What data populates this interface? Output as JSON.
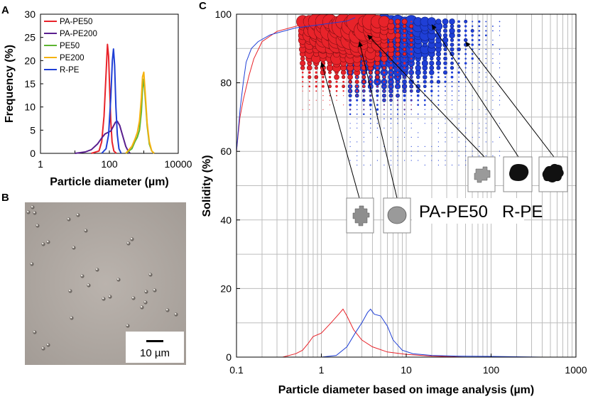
{
  "panels": {
    "a": {
      "label": "A",
      "chart_data": {
        "type": "line",
        "title": "",
        "xlabel": "Particle diameter (µm)",
        "ylabel": "Frequency (%)",
        "xscale": "log",
        "xlim": [
          1,
          10000
        ],
        "ylim": [
          0,
          30
        ],
        "x_ticks": [
          "1",
          "100",
          "10000"
        ],
        "y_ticks": [
          "0",
          "5",
          "10",
          "15",
          "20",
          "25",
          "30"
        ],
        "legend_position": "top-left",
        "series": [
          {
            "name": "PA-PE50",
            "color": "#e8232a",
            "x": [
              30,
              50,
              60,
              70,
              80,
              88,
              95,
              102,
              110,
              120,
              135,
              160
            ],
            "y": [
              0,
              0.5,
              2.5,
              8,
              17,
              23.5,
              21,
              14,
              7,
              2.5,
              0.5,
              0
            ]
          },
          {
            "name": "PA-PE200",
            "color": "#5a1f8f",
            "x": [
              10,
              20,
              30,
              45,
              60,
              75,
              90,
              110,
              130,
              150,
              170,
              200,
              250,
              300,
              350,
              400
            ],
            "y": [
              0,
              0.3,
              0.8,
              2,
              3.3,
              4.2,
              4.5,
              4.8,
              5.8,
              6.7,
              6.9,
              6,
              3.5,
              1.5,
              0.5,
              0
            ]
          },
          {
            "name": "PE50",
            "color": "#5cb531",
            "x": [
              300,
              450,
              550,
              650,
              750,
              850,
              920,
              1000,
              1100,
              1250,
              1450,
              1700,
              2000
            ],
            "y": [
              0,
              1,
              2.5,
              3.5,
              5,
              9,
              14,
              16,
              12,
              6,
              2,
              0.5,
              0
            ]
          },
          {
            "name": "PE200",
            "color": "#f5b20f",
            "x": [
              300,
              450,
              550,
              650,
              750,
              850,
              920,
              1000,
              1100,
              1250,
              1450,
              1700,
              2000
            ],
            "y": [
              0,
              1.5,
              3,
              4.5,
              7,
              12,
              16.5,
              17.5,
              13,
              6.5,
              2.5,
              0.5,
              0
            ]
          },
          {
            "name": "R-PE",
            "color": "#1f3fd6",
            "x": [
              60,
              80,
              95,
              110,
              122,
              132,
              142,
              155,
              170,
              190,
              220
            ],
            "y": [
              0,
              1,
              4,
              12,
              20,
              22.5,
              19,
              10,
              4,
              1,
              0
            ]
          }
        ]
      }
    },
    "b": {
      "label": "B",
      "scale_bar_label": "10 µm"
    },
    "c": {
      "label": "C",
      "chart_data": {
        "type": "scatter",
        "title": "",
        "xlabel": "Particle diameter based on image analysis (µm)",
        "ylabel": "Solidity (%)",
        "xscale": "log",
        "xlim": [
          0.1,
          1000
        ],
        "ylim": [
          0,
          100
        ],
        "x_ticks": [
          "0.1",
          "1",
          "10",
          "100",
          "1000"
        ],
        "y_ticks": [
          "0",
          "20",
          "40",
          "60",
          "80",
          "100"
        ],
        "annotations": [
          "PA-PE50",
          "R-PE"
        ],
        "series": [
          {
            "name": "PA-PE50",
            "color": "#e8232a",
            "bubble_region": {
              "x_range": [
                0.6,
                12
              ],
              "y_range": [
                72,
                100
              ],
              "peak": [
                1.8,
                97
              ]
            },
            "diameter_distribution": {
              "x": [
                0.35,
                0.5,
                0.6,
                0.7,
                0.8,
                1.0,
                1.3,
                1.6,
                1.8,
                2.0,
                2.4,
                3,
                4,
                6,
                10,
                20,
                50
              ],
              "y": [
                0,
                1,
                2,
                4,
                6,
                7,
                10,
                12.5,
                14,
                12,
                8,
                5,
                3,
                1.5,
                0.8,
                0.3,
                0
              ]
            },
            "solidity_distribution": {
              "x": [
                0.1,
                0.11,
                0.12,
                0.14,
                0.16,
                0.2,
                0.3,
                0.6,
                1.0,
                1.5
              ],
              "y": [
                60,
                70,
                75,
                82,
                87,
                92,
                95,
                97,
                98.5,
                99
              ]
            }
          },
          {
            "name": "R-PE",
            "color": "#1f3fd6",
            "bubble_region": {
              "x_range": [
                2,
                150
              ],
              "y_range": [
                56,
                100
              ],
              "peak": [
                4,
                98
              ]
            },
            "diameter_distribution": {
              "x": [
                1,
                1.5,
                2,
                2.5,
                3,
                3.5,
                3.8,
                4.2,
                5,
                6,
                7,
                9,
                12,
                20,
                40,
                100,
                200,
                400
              ],
              "y": [
                0,
                0.5,
                3,
                7,
                10,
                13,
                14,
                12.5,
                12,
                9,
                5,
                2,
                1,
                0.5,
                0.3,
                0.2,
                0.1,
                0
              ]
            },
            "solidity_distribution": {
              "x": [
                0.1,
                0.11,
                0.12,
                0.13,
                0.15,
                0.18,
                0.25,
                0.5,
                1.0,
                2.0,
                2.5
              ],
              "y": [
                60,
                72,
                80,
                86,
                90,
                92,
                94,
                96,
                97,
                98,
                99
              ]
            }
          }
        ]
      }
    }
  }
}
